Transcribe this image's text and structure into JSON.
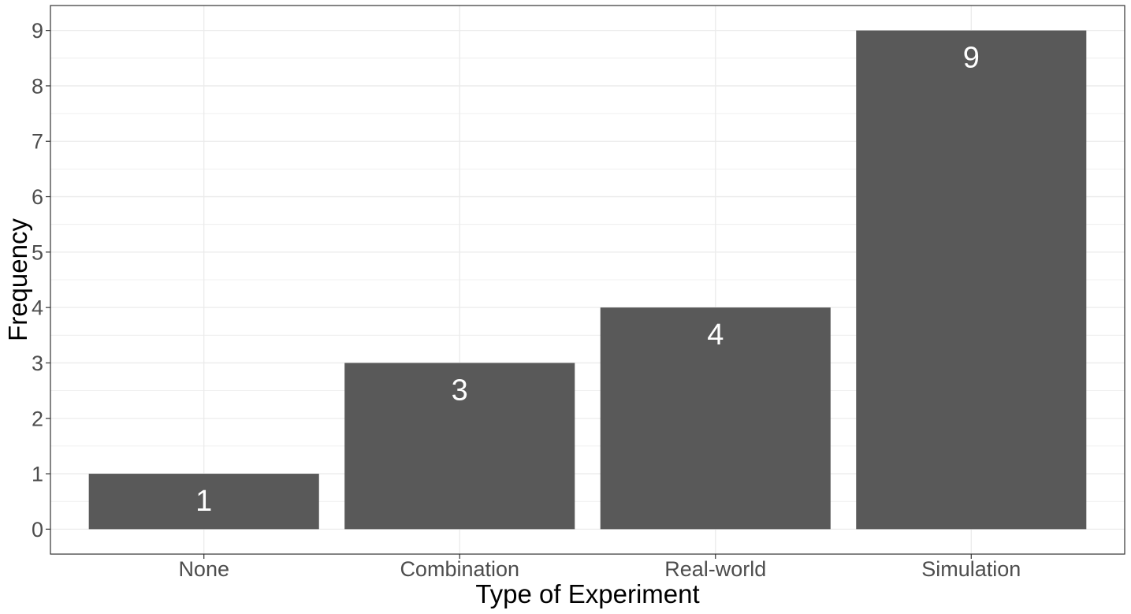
{
  "chart_data": {
    "type": "bar",
    "title": "",
    "xlabel": "Type of Experiment",
    "ylabel": "Frequency",
    "categories": [
      "None",
      "Combination",
      "Real-world",
      "Simulation"
    ],
    "values": [
      1,
      3,
      4,
      9
    ],
    "data_labels": [
      "1",
      "3",
      "4",
      "9"
    ],
    "y_ticks": [
      "0",
      "1",
      "2",
      "3",
      "4",
      "5",
      "6",
      "7",
      "8",
      "9"
    ],
    "ylim": [
      -0.45,
      9.45
    ],
    "grid": true,
    "legend": "none",
    "colors": {
      "bar": "#595959",
      "grid": "#ebebeb",
      "panel_border": "#333333",
      "bar_label": "#ffffff",
      "tick_label": "#4d4d4d",
      "axis_title": "#000000"
    }
  }
}
